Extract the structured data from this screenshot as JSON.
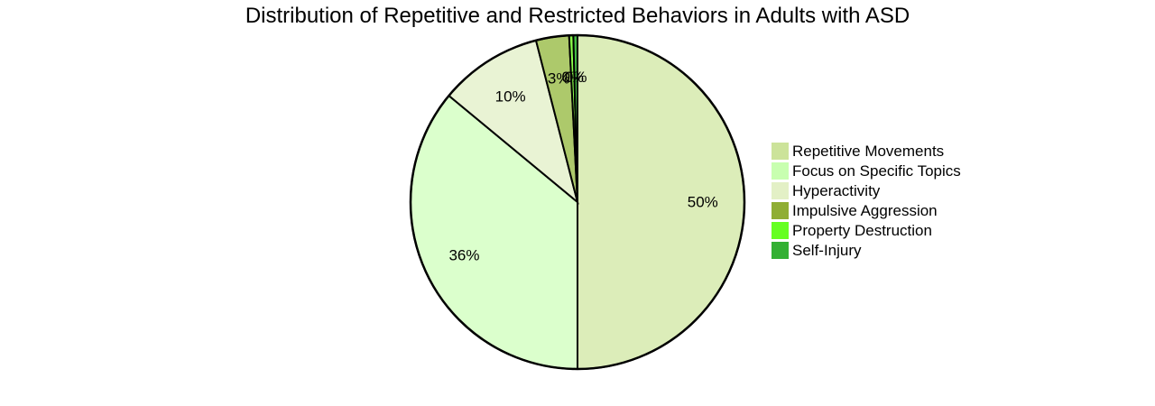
{
  "chart_data": {
    "type": "pie",
    "title": "Distribution of Repetitive and Restricted Behaviors in Adults with ASD",
    "legend_position": "right",
    "slices": [
      {
        "label": "Repetitive Movements",
        "value": 50,
        "display": "50%",
        "color": "#dcedb9",
        "legend_color": "#cce39a"
      },
      {
        "label": "Focus on Specific Topics",
        "value": 36,
        "display": "36%",
        "color": "#dbffcc",
        "legend_color": "#c8ffb0"
      },
      {
        "label": "Hyperactivity",
        "value": 10,
        "display": "10%",
        "color": "#e9f3d4",
        "legend_color": "#e3f0c6"
      },
      {
        "label": "Impulsive Aggression",
        "value": 3.2,
        "display": "3%",
        "color": "#adc96b",
        "legend_color": "#8fae34"
      },
      {
        "label": "Property Destruction",
        "value": 0.4,
        "display": "0%",
        "color": "#8cff4a",
        "legend_color": "#66ff22"
      },
      {
        "label": "Self-Injury",
        "value": 0.4,
        "display": "0%",
        "color": "#44bb44",
        "legend_color": "#33b033"
      }
    ]
  }
}
